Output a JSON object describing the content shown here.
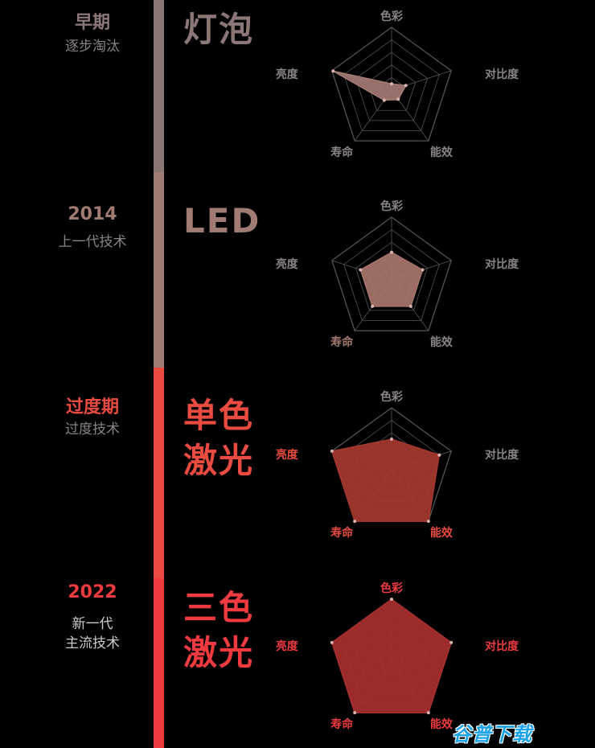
{
  "palette": {
    "grey_text": "#8a8484",
    "stage_colors": [
      "#8b7775",
      "#a07b73",
      "#e94b40",
      "#ef3a3f"
    ],
    "fill_colors": [
      "#a47a74",
      "#a7756c",
      "#a5382f",
      "#a8302f"
    ],
    "timeline_colors": [
      "#8b7775",
      "#a07b73",
      "#e94b40",
      "#ef3a3f"
    ]
  },
  "stages": [
    {
      "era": "早期",
      "subtitle": [
        "逐步淘汰"
      ],
      "title": [
        "灯泡"
      ],
      "axis_highlight": [
        false,
        false,
        false,
        false,
        false
      ]
    },
    {
      "era": "2014",
      "subtitle": [
        "上一代技术"
      ],
      "title": [
        "LED"
      ],
      "axis_highlight": [
        false,
        false,
        false,
        true,
        false
      ]
    },
    {
      "era": "过度期",
      "subtitle": [
        "过度技术"
      ],
      "title": [
        "单色",
        "激光"
      ],
      "axis_highlight": [
        false,
        false,
        true,
        true,
        true
      ]
    },
    {
      "era": "2022",
      "subtitle": [
        "新一代",
        "主流技术"
      ],
      "title": [
        "三色",
        "激光"
      ],
      "axis_highlight": [
        true,
        true,
        true,
        true,
        true
      ]
    }
  ],
  "chart_data": [
    {
      "type": "radar",
      "axes": [
        "色彩",
        "对比度",
        "能效",
        "寿命",
        "亮度"
      ],
      "scale": [
        0,
        5
      ],
      "values": [
        0.5,
        1.2,
        0.9,
        1.0,
        4.9
      ]
    },
    {
      "type": "radar",
      "axes": [
        "色彩",
        "对比度",
        "能效",
        "寿命",
        "亮度"
      ],
      "scale": [
        0,
        5
      ],
      "values": [
        2.2,
        2.6,
        2.6,
        2.6,
        2.6
      ]
    },
    {
      "type": "radar",
      "axes": [
        "色彩",
        "对比度",
        "能效",
        "寿命",
        "亮度"
      ],
      "scale": [
        0,
        5
      ],
      "values": [
        2.5,
        4.0,
        5.0,
        5.0,
        5.0
      ]
    },
    {
      "type": "radar",
      "axes": [
        "色彩",
        "对比度",
        "能效",
        "寿命",
        "亮度"
      ],
      "scale": [
        0,
        5
      ],
      "values": [
        5.0,
        5.0,
        5.0,
        5.0,
        5.0
      ]
    }
  ],
  "watermark": "谷普下载"
}
